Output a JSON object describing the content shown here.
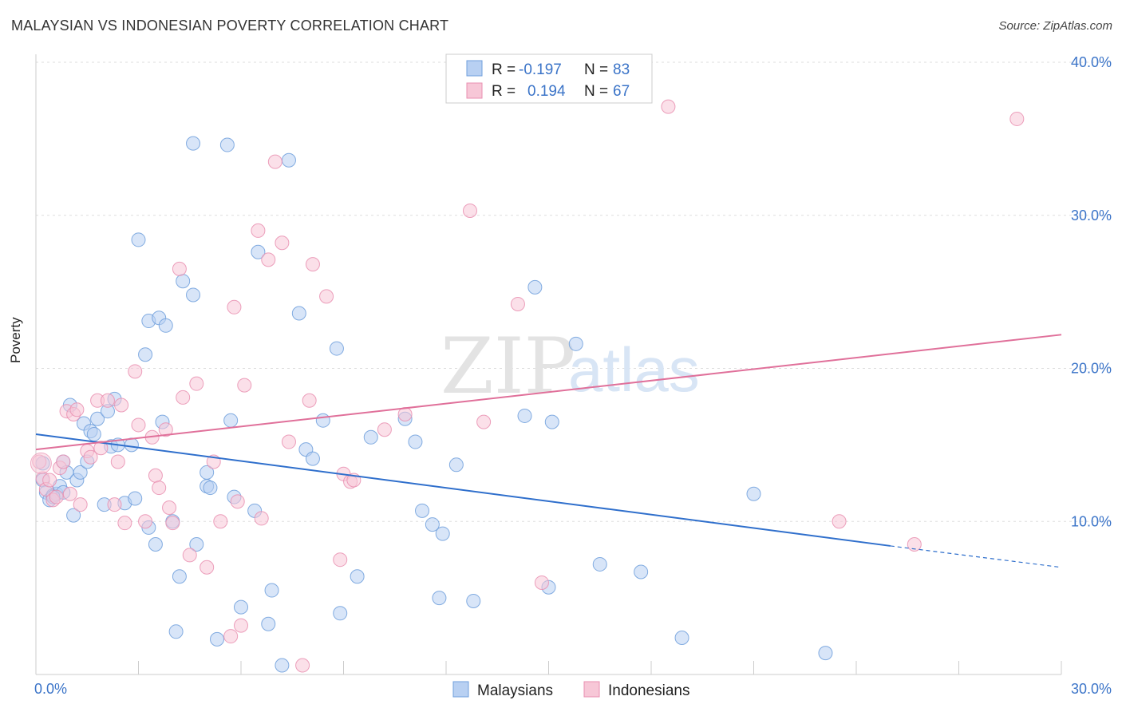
{
  "header": {
    "title": "MALAYSIAN VS INDONESIAN POVERTY CORRELATION CHART",
    "source": "Source: ZipAtlas.com"
  },
  "watermark": {
    "zip": "ZIP",
    "atlas": "atlas"
  },
  "chart_data": {
    "type": "scatter",
    "title": "MALAYSIAN VS INDONESIAN POVERTY CORRELATION CHART",
    "xlabel": "",
    "ylabel": "Poverty",
    "xlim": [
      0,
      30
    ],
    "ylim": [
      0,
      40
    ],
    "x_tick_labels": [
      "0.0%",
      "30.0%"
    ],
    "y_ticks": [
      10,
      20,
      30,
      40
    ],
    "y_tick_labels": [
      "10.0%",
      "20.0%",
      "30.0%",
      "40.0%"
    ],
    "grid": true,
    "legend_position": "top-center",
    "colors": {
      "malaysians": "#6f9fdc",
      "malaysians_fill": "#b8d0f2",
      "indonesians": "#e98fb0",
      "indonesians_fill": "#f7c7d7",
      "malaysians_line": "#2f6fcc",
      "indonesians_line": "#e0709a"
    },
    "stats": [
      {
        "r_label": "R =",
        "r_value": "-0.197",
        "n_label": "N =",
        "n_value": "83"
      },
      {
        "r_label": "R =",
        "r_value": "0.194",
        "n_label": "N =",
        "n_value": "67"
      }
    ],
    "series": [
      {
        "name": "Malaysians",
        "trend": {
          "x": [
            0,
            25
          ],
          "y": [
            15.7,
            8.4
          ],
          "dash_x": [
            25,
            30
          ],
          "dash_y": [
            8.4,
            7.0
          ]
        },
        "points": [
          [
            0.2,
            13.8
          ],
          [
            0.2,
            12.7
          ],
          [
            0.3,
            11.9
          ],
          [
            0.4,
            11.4
          ],
          [
            0.5,
            11.7
          ],
          [
            0.6,
            11.8
          ],
          [
            0.7,
            12.3
          ],
          [
            0.8,
            13.9
          ],
          [
            0.8,
            11.9
          ],
          [
            0.9,
            13.2
          ],
          [
            1.0,
            17.6
          ],
          [
            1.1,
            10.4
          ],
          [
            1.2,
            12.7
          ],
          [
            1.3,
            13.2
          ],
          [
            1.4,
            16.4
          ],
          [
            1.5,
            13.9
          ],
          [
            1.6,
            15.9
          ],
          [
            1.7,
            15.7
          ],
          [
            1.8,
            16.7
          ],
          [
            2.0,
            11.1
          ],
          [
            2.1,
            17.2
          ],
          [
            2.2,
            14.9
          ],
          [
            2.3,
            18.0
          ],
          [
            2.4,
            15.0
          ],
          [
            2.6,
            11.2
          ],
          [
            2.8,
            15.0
          ],
          [
            2.9,
            11.5
          ],
          [
            3.0,
            28.4
          ],
          [
            3.2,
            20.9
          ],
          [
            3.3,
            23.1
          ],
          [
            3.5,
            8.5
          ],
          [
            3.6,
            23.3
          ],
          [
            3.7,
            16.5
          ],
          [
            3.8,
            22.8
          ],
          [
            4.0,
            10.0
          ],
          [
            4.1,
            2.8
          ],
          [
            4.2,
            6.4
          ],
          [
            4.3,
            25.7
          ],
          [
            4.6,
            24.8
          ],
          [
            4.7,
            8.5
          ],
          [
            5.0,
            13.2
          ],
          [
            5.0,
            12.3
          ],
          [
            5.1,
            12.2
          ],
          [
            5.3,
            2.3
          ],
          [
            5.6,
            34.6
          ],
          [
            5.7,
            16.6
          ],
          [
            5.8,
            11.6
          ],
          [
            6.0,
            4.4
          ],
          [
            6.4,
            10.7
          ],
          [
            6.5,
            27.6
          ],
          [
            6.8,
            3.3
          ],
          [
            6.9,
            5.5
          ],
          [
            7.2,
            0.6
          ],
          [
            7.4,
            33.6
          ],
          [
            7.7,
            23.6
          ],
          [
            7.9,
            14.7
          ],
          [
            8.1,
            14.1
          ],
          [
            8.4,
            16.6
          ],
          [
            8.8,
            21.3
          ],
          [
            8.9,
            4.0
          ],
          [
            9.4,
            6.4
          ],
          [
            9.8,
            15.5
          ],
          [
            10.8,
            16.7
          ],
          [
            11.1,
            15.2
          ],
          [
            11.3,
            10.7
          ],
          [
            11.6,
            9.8
          ],
          [
            11.8,
            5.0
          ],
          [
            11.9,
            9.2
          ],
          [
            12.3,
            13.7
          ],
          [
            12.8,
            4.8
          ],
          [
            14.3,
            16.9
          ],
          [
            14.6,
            25.3
          ],
          [
            15.0,
            5.7
          ],
          [
            15.1,
            16.5
          ],
          [
            15.8,
            21.6
          ],
          [
            16.5,
            7.2
          ],
          [
            17.7,
            6.7
          ],
          [
            18.9,
            2.4
          ],
          [
            21.0,
            11.8
          ],
          [
            23.1,
            1.4
          ],
          [
            4.6,
            34.7
          ],
          [
            3.3,
            9.6
          ],
          [
            0.5,
            11.6
          ]
        ]
      },
      {
        "name": "Indonesians",
        "trend": {
          "x": [
            0,
            30
          ],
          "y": [
            14.7,
            22.2
          ]
        },
        "points": [
          [
            0.1,
            13.9
          ],
          [
            0.2,
            12.8
          ],
          [
            0.3,
            12.1
          ],
          [
            0.4,
            12.7
          ],
          [
            0.5,
            11.4
          ],
          [
            0.6,
            11.6
          ],
          [
            0.7,
            13.5
          ],
          [
            0.8,
            13.9
          ],
          [
            0.9,
            17.2
          ],
          [
            1.0,
            11.8
          ],
          [
            1.1,
            17.0
          ],
          [
            1.2,
            17.3
          ],
          [
            1.3,
            11.1
          ],
          [
            1.5,
            14.6
          ],
          [
            1.6,
            14.2
          ],
          [
            1.8,
            17.9
          ],
          [
            1.9,
            14.8
          ],
          [
            2.1,
            17.9
          ],
          [
            2.3,
            11.1
          ],
          [
            2.4,
            13.9
          ],
          [
            2.5,
            17.6
          ],
          [
            2.6,
            9.9
          ],
          [
            2.9,
            19.8
          ],
          [
            3.0,
            16.3
          ],
          [
            3.2,
            10.0
          ],
          [
            3.4,
            15.5
          ],
          [
            3.5,
            13.0
          ],
          [
            3.6,
            12.2
          ],
          [
            3.8,
            16.0
          ],
          [
            3.9,
            10.9
          ],
          [
            4.0,
            9.9
          ],
          [
            4.2,
            26.5
          ],
          [
            4.3,
            18.1
          ],
          [
            4.5,
            7.8
          ],
          [
            4.7,
            19.0
          ],
          [
            5.0,
            7.0
          ],
          [
            5.2,
            13.9
          ],
          [
            5.4,
            10.0
          ],
          [
            5.7,
            2.5
          ],
          [
            5.8,
            24.0
          ],
          [
            5.9,
            11.3
          ],
          [
            6.0,
            3.2
          ],
          [
            6.1,
            18.9
          ],
          [
            6.5,
            29.0
          ],
          [
            6.6,
            10.2
          ],
          [
            6.8,
            27.1
          ],
          [
            7.0,
            33.5
          ],
          [
            7.2,
            28.2
          ],
          [
            7.4,
            15.2
          ],
          [
            7.8,
            0.6
          ],
          [
            8.0,
            17.9
          ],
          [
            8.1,
            26.8
          ],
          [
            8.5,
            24.7
          ],
          [
            8.9,
            7.5
          ],
          [
            9.0,
            13.1
          ],
          [
            9.2,
            12.6
          ],
          [
            9.3,
            12.7
          ],
          [
            10.2,
            16.0
          ],
          [
            10.8,
            17.0
          ],
          [
            12.7,
            30.3
          ],
          [
            13.1,
            16.5
          ],
          [
            14.1,
            24.2
          ],
          [
            14.8,
            6.0
          ],
          [
            18.5,
            37.1
          ],
          [
            23.5,
            10.0
          ],
          [
            25.7,
            8.5
          ],
          [
            28.7,
            36.3
          ]
        ]
      }
    ]
  },
  "bottom_legend": [
    {
      "label": "Malaysians"
    },
    {
      "label": "Indonesians"
    }
  ]
}
